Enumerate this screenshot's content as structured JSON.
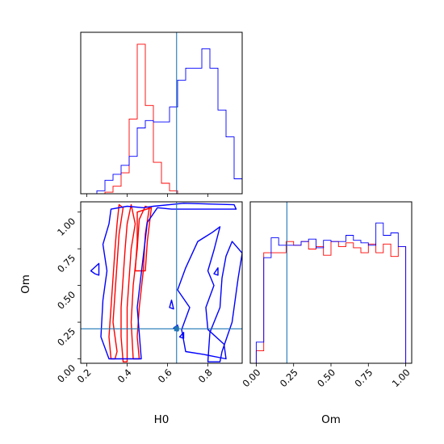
{
  "chart_data": {
    "type": "corner",
    "parameters": [
      "H0",
      "Om"
    ],
    "truths": {
      "H0": 0.645,
      "Om": 0.205
    },
    "series_colors": {
      "red": "#ff0000",
      "blue": "#0000ff",
      "truth": "#1f77b4"
    },
    "grid": false,
    "panels": [
      {
        "name": "H0 marginal",
        "type": "step-histogram",
        "xlim": [
          0.17,
          0.97
        ],
        "bin_edges": [
          0.17,
          0.21,
          0.25,
          0.29,
          0.33,
          0.37,
          0.41,
          0.45,
          0.49,
          0.53,
          0.57,
          0.61,
          0.65,
          0.69,
          0.73,
          0.77,
          0.81,
          0.85,
          0.89,
          0.93,
          0.97
        ],
        "ylim": [
          0,
          1.08
        ],
        "series": [
          {
            "color": "red",
            "values": [
              0,
              0,
              0,
              0.01,
              0.05,
              0.14,
              0.5,
              1.0,
              0.59,
              0.21,
              0.07,
              0.02,
              0,
              0,
              0,
              0,
              0,
              0,
              0,
              0
            ]
          },
          {
            "color": "blue",
            "values": [
              0,
              0,
              0.02,
              0.09,
              0.13,
              0.19,
              0.25,
              0.44,
              0.49,
              0.48,
              0.48,
              0.58,
              0.76,
              0.84,
              0.84,
              0.97,
              0.84,
              0.56,
              0.38,
              0.1
            ]
          }
        ],
        "tick_labels": []
      },
      {
        "name": "Om marginal",
        "type": "step-histogram",
        "xlim": [
          -0.04,
          1.04
        ],
        "bin_edges": [
          0,
          0.05,
          0.1,
          0.15,
          0.2,
          0.25,
          0.3,
          0.35,
          0.4,
          0.45,
          0.5,
          0.55,
          0.6,
          0.65,
          0.7,
          0.75,
          0.8,
          0.85,
          0.9,
          0.95,
          1.0
        ],
        "ylim": [
          0,
          1.3
        ],
        "series": [
          {
            "color": "red",
            "values": [
              0.1,
              0.89,
              0.89,
              0.89,
              0.98,
              0.95,
              0.98,
              0.92,
              0.94,
              0.87,
              0.98,
              0.94,
              0.97,
              0.93,
              0.89,
              0.96,
              0.89,
              0.96,
              0.86,
              0.94
            ]
          },
          {
            "color": "blue",
            "values": [
              0.17,
              0.85,
              1.01,
              0.95,
              0.95,
              0.95,
              0.98,
              1.0,
              0.93,
              0.99,
              0.98,
              0.98,
              1.03,
              0.99,
              0.97,
              0.95,
              1.13,
              1.03,
              1.05,
              0.94
            ]
          }
        ],
        "tick_labels": [
          "0.00",
          "0.25",
          "0.50",
          "0.75",
          "1.00"
        ],
        "xlabel": "Om"
      },
      {
        "name": "H0 vs Om joint",
        "type": "contour",
        "xlim": [
          0.17,
          0.97
        ],
        "ylim": [
          -0.03,
          1.07
        ],
        "x_tick_labels": [
          "0.2",
          "0.4",
          "0.6",
          "0.8"
        ],
        "y_tick_labels": [
          "0.00",
          "0.25",
          "0.50",
          "0.75",
          "1.00"
        ],
        "xlabel": "H0",
        "ylabel": "Om",
        "contours": [
          {
            "color": "red",
            "points": [
              [
                0.38,
                -0.02
              ],
              [
                0.37,
                0.15
              ],
              [
                0.37,
                0.35
              ],
              [
                0.38,
                0.55
              ],
              [
                0.39,
                0.75
              ],
              [
                0.4,
                0.92
              ],
              [
                0.42,
                1.05
              ],
              [
                0.44,
                0.92
              ],
              [
                0.42,
                0.75
              ],
              [
                0.41,
                0.55
              ],
              [
                0.4,
                0.35
              ],
              [
                0.4,
                0.15
              ],
              [
                0.4,
                -0.02
              ]
            ]
          },
          {
            "color": "red",
            "points": [
              [
                0.32,
                0.0
              ],
              [
                0.31,
                0.15
              ],
              [
                0.32,
                0.35
              ],
              [
                0.33,
                0.55
              ],
              [
                0.34,
                0.75
              ],
              [
                0.35,
                0.92
              ],
              [
                0.36,
                1.05
              ],
              [
                0.38,
                1.03
              ],
              [
                0.36,
                0.85
              ],
              [
                0.35,
                0.65
              ],
              [
                0.34,
                0.45
              ],
              [
                0.33,
                0.25
              ],
              [
                0.35,
                0.05
              ],
              [
                0.34,
                0.0
              ]
            ]
          },
          {
            "color": "red",
            "points": [
              [
                0.43,
                0.0
              ],
              [
                0.42,
                0.25
              ],
              [
                0.43,
                0.5
              ],
              [
                0.45,
                0.75
              ],
              [
                0.46,
                0.95
              ],
              [
                0.49,
                1.04
              ],
              [
                0.51,
                1.03
              ],
              [
                0.49,
                0.85
              ],
              [
                0.48,
                0.6
              ],
              [
                0.46,
                0.35
              ],
              [
                0.45,
                0.15
              ],
              [
                0.46,
                0.0
              ]
            ]
          },
          {
            "color": "red",
            "points": [
              [
                0.44,
                0.6
              ],
              [
                0.45,
                0.8
              ],
              [
                0.45,
                1.0
              ],
              [
                0.52,
                1.03
              ],
              [
                0.5,
                0.8
              ],
              [
                0.49,
                0.6
              ]
            ]
          },
          {
            "color": "blue",
            "points": [
              [
                0.31,
                0.0
              ],
              [
                0.27,
                0.15
              ],
              [
                0.28,
                0.4
              ],
              [
                0.3,
                0.6
              ],
              [
                0.28,
                0.78
              ],
              [
                0.31,
                0.92
              ],
              [
                0.32,
                1.02
              ],
              [
                0.4,
                1.04
              ],
              [
                0.48,
                1.03
              ],
              [
                0.53,
                1.04
              ],
              [
                0.68,
                1.06
              ],
              [
                0.93,
                1.05
              ],
              [
                0.94,
                1.02
              ],
              [
                0.62,
                1.02
              ],
              [
                0.55,
                1.03
              ],
              [
                0.5,
                0.93
              ],
              [
                0.48,
                0.7
              ],
              [
                0.45,
                0.35
              ],
              [
                0.47,
                0.0
              ]
            ]
          },
          {
            "color": "blue",
            "points": [
              [
                0.69,
                0.05
              ],
              [
                0.67,
                0.2
              ],
              [
                0.71,
                0.35
              ],
              [
                0.65,
                0.47
              ],
              [
                0.69,
                0.62
              ],
              [
                0.75,
                0.8
              ],
              [
                0.82,
                0.86
              ],
              [
                0.86,
                0.9
              ],
              [
                0.83,
                0.74
              ],
              [
                0.8,
                0.6
              ],
              [
                0.83,
                0.5
              ],
              [
                0.79,
                0.35
              ],
              [
                0.8,
                0.2
              ],
              [
                0.88,
                0.1
              ],
              [
                0.89,
                0.0
              ],
              [
                0.78,
                0.03
              ]
            ]
          },
          {
            "color": "blue",
            "points": [
              [
                0.8,
                -0.02
              ],
              [
                0.81,
                0.18
              ],
              [
                0.86,
                0.35
              ],
              [
                0.87,
                0.55
              ],
              [
                0.89,
                0.7
              ],
              [
                0.92,
                0.8
              ],
              [
                0.97,
                0.72
              ],
              [
                0.95,
                0.55
              ],
              [
                0.92,
                0.25
              ],
              [
                0.87,
                0.05
              ],
              [
                0.86,
                -0.02
              ]
            ]
          },
          {
            "color": "blue",
            "points": [
              [
                0.22,
                0.6
              ],
              [
                0.26,
                0.65
              ],
              [
                0.26,
                0.57
              ],
              [
                0.24,
                0.58
              ]
            ]
          },
          {
            "color": "blue",
            "points": [
              [
                0.61,
                0.35
              ],
              [
                0.62,
                0.4
              ],
              [
                0.63,
                0.34
              ]
            ]
          },
          {
            "color": "blue",
            "points": [
              [
                0.66,
                0.15
              ],
              [
                0.68,
                0.18
              ],
              [
                0.68,
                0.14
              ]
            ]
          },
          {
            "color": "blue",
            "points": [
              [
                0.63,
                0.21
              ],
              [
                0.65,
                0.23
              ],
              [
                0.65,
                0.19
              ]
            ]
          },
          {
            "color": "blue",
            "points": [
              [
                0.83,
                0.58
              ],
              [
                0.85,
                0.62
              ],
              [
                0.85,
                0.57
              ]
            ]
          }
        ]
      }
    ]
  }
}
